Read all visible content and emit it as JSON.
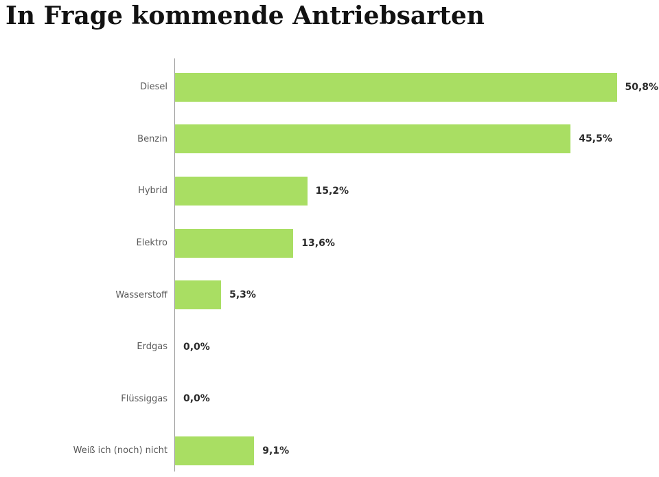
{
  "page": {
    "title": "In Frage kommende Antriebsarten"
  },
  "chart_data": {
    "type": "bar",
    "orientation": "horizontal",
    "title": "In Frage kommende Antriebsarten",
    "categories": [
      "Diesel",
      "Benzin",
      "Hybrid",
      "Elektro",
      "Wasserstoff",
      "Erdgas",
      "Flüssiggas",
      "Weiß ich (noch) nicht"
    ],
    "values": [
      50.8,
      45.5,
      15.2,
      13.6,
      5.3,
      0.0,
      0.0,
      9.1
    ],
    "value_labels": [
      "50,8%",
      "45,5%",
      "15,2%",
      "13,6%",
      "5,3%",
      "0,0%",
      "0,0%",
      "9,1%"
    ],
    "xlabel": "",
    "ylabel": "",
    "xlim": [
      0,
      55.5
    ],
    "grid": false,
    "legend": false,
    "bar_color": "#a9de63",
    "category_label_color": "#595959",
    "value_label_color": "#2a2a2a",
    "axis_line_color": "#9b9b9b"
  }
}
